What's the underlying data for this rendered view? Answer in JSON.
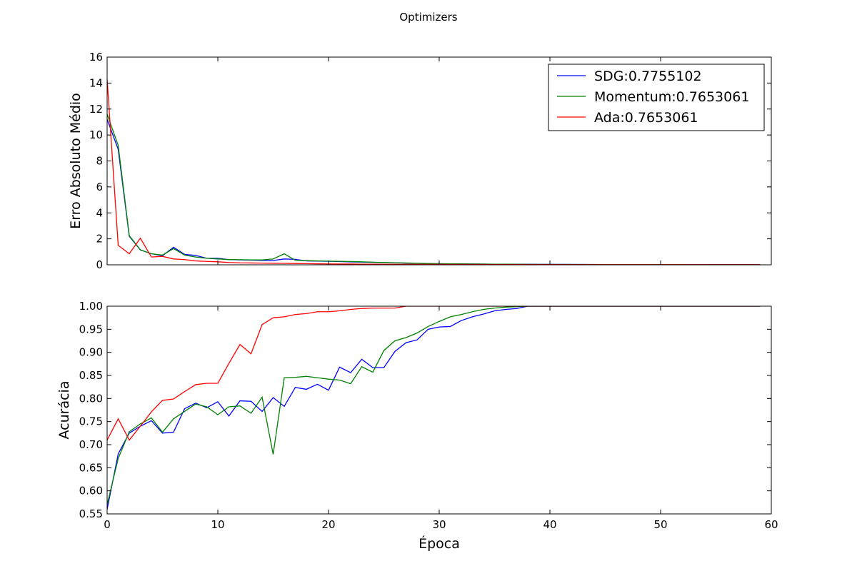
{
  "figure": {
    "title": "Optimizers"
  },
  "colors": {
    "SDG": "#0000ff",
    "Momentum": "#008000",
    "Ada": "#ff0000"
  },
  "chart_data": [
    {
      "type": "line",
      "title": "",
      "xlabel": "",
      "ylabel": "Erro Absoluto Médio",
      "xlim": [
        0,
        60
      ],
      "ylim": [
        0,
        16
      ],
      "xticks": [
        0,
        10,
        20,
        30,
        40,
        50,
        60
      ],
      "xtick_labels": [],
      "yticks": [
        0,
        2,
        4,
        6,
        8,
        10,
        12,
        14,
        16
      ],
      "ytick_labels": [
        "0",
        "2",
        "4",
        "6",
        "8",
        "10",
        "12",
        "14",
        "16"
      ],
      "grid": false,
      "legend": "top-right",
      "series": [
        {
          "name": "SDG:0.7755102",
          "color_key": "SDG",
          "x": [
            0,
            1,
            2,
            3,
            4,
            5,
            6,
            7,
            8,
            9,
            10,
            11,
            12,
            13,
            14,
            15,
            16,
            17,
            18,
            19,
            20,
            21,
            22,
            23,
            24,
            25,
            26,
            27,
            28,
            29,
            30,
            35,
            40,
            45,
            50,
            55,
            59
          ],
          "values": [
            11.2,
            8.9,
            2.2,
            1.15,
            0.85,
            0.7,
            1.35,
            0.8,
            0.72,
            0.5,
            0.5,
            0.4,
            0.38,
            0.36,
            0.34,
            0.33,
            0.45,
            0.42,
            0.3,
            0.28,
            0.27,
            0.25,
            0.22,
            0.21,
            0.19,
            0.17,
            0.15,
            0.13,
            0.11,
            0.09,
            0.08,
            0.05,
            0.03,
            0.02,
            0.02,
            0.01,
            0.01
          ]
        },
        {
          "name": "Momentum:0.7653061",
          "color_key": "Momentum",
          "x": [
            0,
            1,
            2,
            3,
            4,
            5,
            6,
            7,
            8,
            9,
            10,
            11,
            12,
            13,
            14,
            15,
            16,
            17,
            18,
            19,
            20,
            21,
            22,
            23,
            24,
            25,
            26,
            27,
            28,
            29,
            30,
            35,
            40,
            45,
            50,
            55,
            59
          ],
          "values": [
            11.6,
            9.2,
            2.25,
            1.15,
            0.85,
            0.75,
            1.25,
            0.75,
            0.6,
            0.5,
            0.45,
            0.4,
            0.4,
            0.38,
            0.38,
            0.45,
            0.85,
            0.35,
            0.32,
            0.3,
            0.28,
            0.27,
            0.25,
            0.23,
            0.2,
            0.18,
            0.16,
            0.14,
            0.12,
            0.1,
            0.08,
            0.05,
            0.03,
            0.02,
            0.02,
            0.01,
            0.01
          ]
        },
        {
          "name": "Ada:0.7653061",
          "color_key": "Ada",
          "x": [
            0,
            1,
            2,
            3,
            4,
            5,
            6,
            7,
            8,
            9,
            10,
            11,
            12,
            13,
            14,
            15,
            16,
            17,
            18,
            19,
            20,
            21,
            22,
            23,
            24,
            25,
            26,
            27,
            28,
            29,
            30,
            35,
            40,
            45,
            50,
            55,
            59
          ],
          "values": [
            14.3,
            1.5,
            0.85,
            2.05,
            0.6,
            0.65,
            0.45,
            0.4,
            0.3,
            0.26,
            0.23,
            0.18,
            0.15,
            0.14,
            0.13,
            0.12,
            0.11,
            0.1,
            0.09,
            0.08,
            0.07,
            0.06,
            0.06,
            0.05,
            0.05,
            0.04,
            0.04,
            0.04,
            0.03,
            0.03,
            0.03,
            0.02,
            0.02,
            0.01,
            0.01,
            0.01,
            0.01
          ]
        }
      ]
    },
    {
      "type": "line",
      "title": "",
      "xlabel": "Época",
      "ylabel": "Acurácia",
      "xlim": [
        0,
        60
      ],
      "ylim": [
        0.55,
        1.0
      ],
      "xticks": [
        0,
        10,
        20,
        30,
        40,
        50,
        60
      ],
      "xtick_labels": [
        "0",
        "10",
        "20",
        "30",
        "40",
        "50",
        "60"
      ],
      "yticks": [
        0.55,
        0.6,
        0.65,
        0.7,
        0.75,
        0.8,
        0.85,
        0.9,
        0.95,
        1.0
      ],
      "ytick_labels": [
        "0.55",
        "0.60",
        "0.65",
        "0.70",
        "0.75",
        "0.80",
        "0.85",
        "0.90",
        "0.95",
        "1.00"
      ],
      "grid": false,
      "legend": "none",
      "series": [
        {
          "color_key": "SDG",
          "x": [
            0,
            1,
            2,
            3,
            4,
            5,
            6,
            7,
            8,
            9,
            10,
            11,
            12,
            13,
            14,
            15,
            16,
            17,
            18,
            19,
            20,
            21,
            22,
            23,
            24,
            25,
            26,
            27,
            28,
            29,
            30,
            31,
            32,
            33,
            34,
            35,
            36,
            37,
            38,
            39,
            40,
            45,
            50,
            55,
            59
          ],
          "values": [
            0.56,
            0.68,
            0.725,
            0.74,
            0.752,
            0.725,
            0.727,
            0.778,
            0.79,
            0.78,
            0.793,
            0.762,
            0.795,
            0.794,
            0.772,
            0.802,
            0.783,
            0.824,
            0.82,
            0.831,
            0.818,
            0.868,
            0.856,
            0.885,
            0.867,
            0.867,
            0.902,
            0.921,
            0.927,
            0.95,
            0.955,
            0.956,
            0.969,
            0.977,
            0.983,
            0.99,
            0.993,
            0.995,
            1.0,
            1.0,
            1.0,
            1.0,
            1.0,
            1.0,
            1.0
          ]
        },
        {
          "color_key": "Momentum",
          "x": [
            0,
            1,
            2,
            3,
            4,
            5,
            6,
            7,
            8,
            9,
            10,
            11,
            12,
            13,
            14,
            15,
            16,
            17,
            18,
            19,
            20,
            21,
            22,
            23,
            24,
            25,
            26,
            27,
            28,
            29,
            30,
            31,
            32,
            33,
            34,
            35,
            36,
            37,
            38,
            39,
            40,
            45,
            50,
            55,
            59
          ],
          "values": [
            0.57,
            0.67,
            0.728,
            0.745,
            0.758,
            0.727,
            0.756,
            0.772,
            0.788,
            0.782,
            0.765,
            0.782,
            0.784,
            0.768,
            0.803,
            0.679,
            0.845,
            0.846,
            0.848,
            0.845,
            0.842,
            0.84,
            0.832,
            0.869,
            0.857,
            0.904,
            0.925,
            0.932,
            0.942,
            0.956,
            0.967,
            0.977,
            0.982,
            0.988,
            0.993,
            0.996,
            0.998,
            0.999,
            1.0,
            1.0,
            1.0,
            1.0,
            1.0,
            1.0,
            1.0
          ]
        },
        {
          "color_key": "Ada",
          "x": [
            0,
            1,
            2,
            3,
            4,
            5,
            6,
            7,
            8,
            9,
            10,
            11,
            12,
            13,
            14,
            15,
            16,
            17,
            18,
            19,
            20,
            21,
            22,
            23,
            24,
            25,
            26,
            27,
            28,
            29,
            30,
            35,
            40,
            45,
            50,
            55,
            59
          ],
          "values": [
            0.71,
            0.756,
            0.71,
            0.74,
            0.771,
            0.796,
            0.799,
            0.815,
            0.83,
            0.833,
            0.833,
            0.876,
            0.917,
            0.897,
            0.96,
            0.975,
            0.977,
            0.982,
            0.984,
            0.988,
            0.988,
            0.99,
            0.993,
            0.995,
            0.996,
            0.996,
            0.996,
            1.0,
            1.0,
            1.0,
            1.0,
            1.0,
            1.0,
            1.0,
            1.0,
            1.0,
            1.0
          ]
        }
      ]
    }
  ]
}
